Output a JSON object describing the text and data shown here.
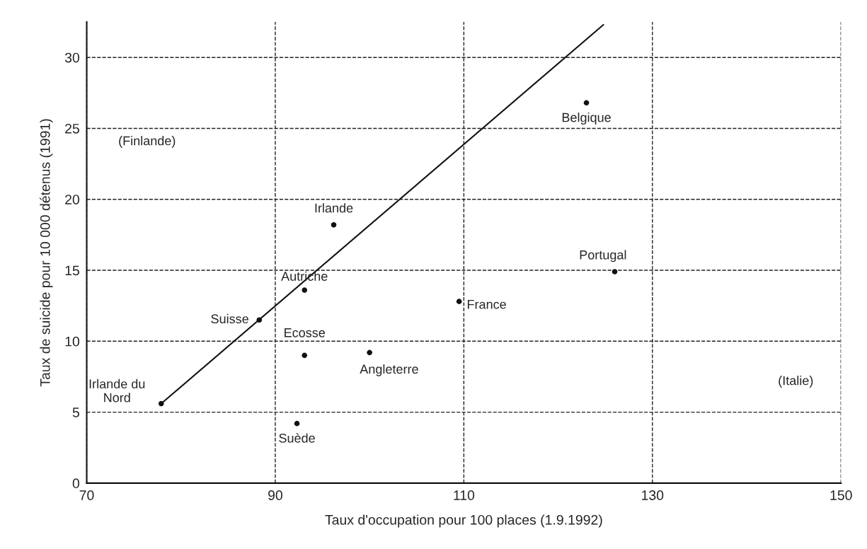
{
  "chart_data": {
    "type": "scatter",
    "xlabel": "Taux d'occupation pour 100 places (1.9.1992)",
    "ylabel": "Taux de suicide pour 10 000 détenus (1991)",
    "xlim": [
      70,
      150
    ],
    "ylim": [
      0,
      32.5
    ],
    "xticks": [
      70,
      90,
      110,
      130,
      150
    ],
    "yticks": [
      0,
      5,
      10,
      15,
      20,
      25,
      30
    ],
    "grid": true,
    "series": [
      {
        "marker": "circle",
        "color": "#111111",
        "x": [
          77.9,
          92.3,
          88.3,
          93.1,
          93.1,
          96.2,
          100,
          109.5,
          126,
          123
        ],
        "values": [
          5.6,
          4.2,
          11.5,
          9.0,
          13.6,
          18.2,
          9.2,
          12.8,
          14.9,
          26.8
        ]
      },
      {
        "type": "line",
        "color": "#111111",
        "x": [
          77.9,
          124.8
        ],
        "values": [
          5.6,
          32.3
        ]
      }
    ],
    "annotations": [
      {
        "text": "Irlande du\nNord",
        "x": 77.9,
        "y": 5.6
      },
      {
        "text": "Suède",
        "x": 92.3,
        "y": 4.2
      },
      {
        "text": "Suisse",
        "x": 88.3,
        "y": 11.5
      },
      {
        "text": "Ecosse",
        "x": 93.1,
        "y": 9.0
      },
      {
        "text": "Autriche",
        "x": 93.1,
        "y": 13.6
      },
      {
        "text": "Irlande",
        "x": 96.2,
        "y": 18.2
      },
      {
        "text": "Angleterre",
        "x": 100,
        "y": 9.2
      },
      {
        "text": "France",
        "x": 109.5,
        "y": 12.8
      },
      {
        "text": "Portugal",
        "x": 126,
        "y": 14.9
      },
      {
        "text": "Belgique",
        "x": 123,
        "y": 26.8
      },
      "(Finlande)",
      "(Italie)"
    ]
  }
}
